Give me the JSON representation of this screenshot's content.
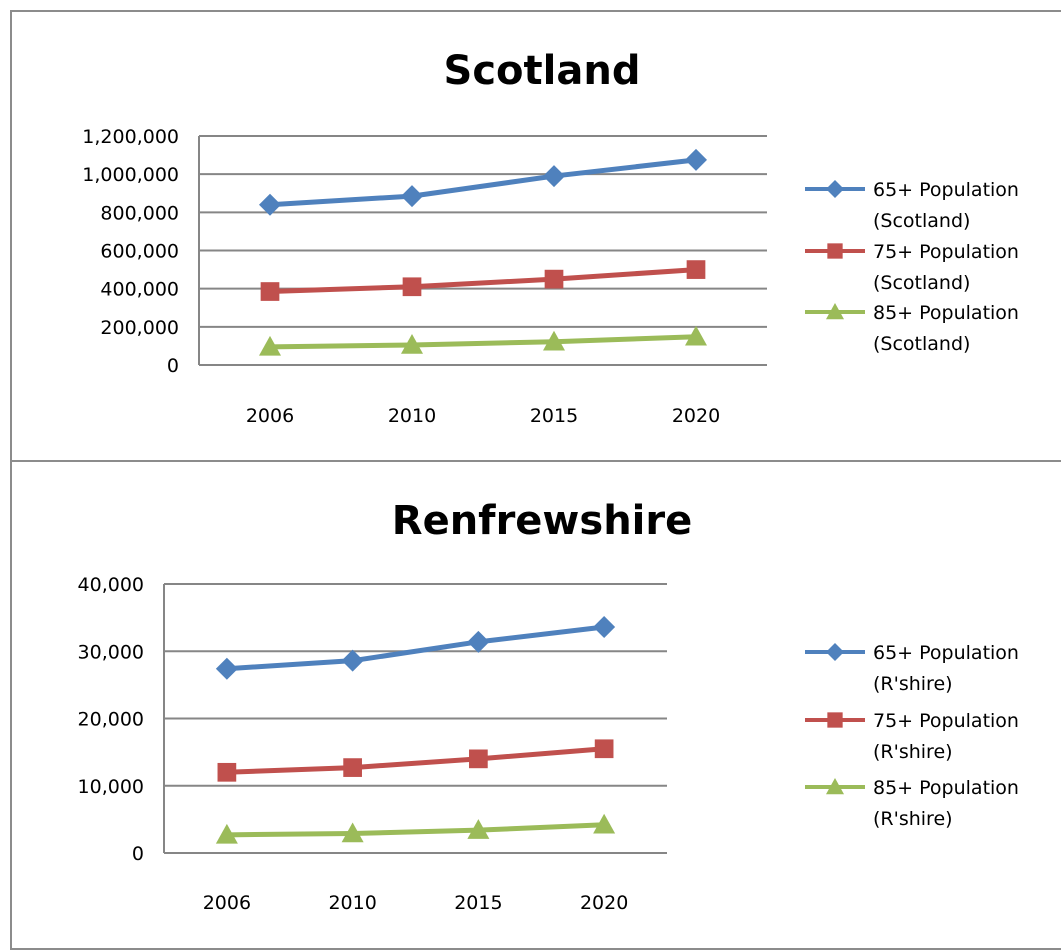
{
  "chart_data": [
    {
      "type": "line",
      "title": "Scotland",
      "xlabel": "",
      "ylabel": "",
      "categories": [
        "2006",
        "2010",
        "2015",
        "2020"
      ],
      "ylim": [
        0,
        1200000
      ],
      "yticks": [
        "0",
        "200,000",
        "400,000",
        "600,000",
        "800,000",
        "1,000,000",
        "1,200,000"
      ],
      "grid": true,
      "legend_position": "right",
      "series": [
        {
          "name": "65+ Population (Scotland)",
          "name_lines": [
            "65+ Population",
            "(Scotland)"
          ],
          "color": "#4f81bd",
          "marker": "diamond",
          "values": [
            840000,
            885000,
            990000,
            1075000
          ]
        },
        {
          "name": "75+ Population (Scotland)",
          "name_lines": [
            "75+ Population",
            "(Scotland)"
          ],
          "color": "#c0504d",
          "marker": "square",
          "values": [
            385000,
            410000,
            450000,
            500000
          ]
        },
        {
          "name": "85+ Population (Scotland)",
          "name_lines": [
            "85+ Population",
            "(Scotland)"
          ],
          "color": "#9bbb59",
          "marker": "triangle",
          "values": [
            95000,
            105000,
            122000,
            148000
          ]
        }
      ]
    },
    {
      "type": "line",
      "title": "Renfrewshire",
      "xlabel": "",
      "ylabel": "",
      "categories": [
        "2006",
        "2010",
        "2015",
        "2020"
      ],
      "ylim": [
        0,
        40000
      ],
      "yticks": [
        "0",
        "10,000",
        "20,000",
        "30,000",
        "40,000"
      ],
      "grid": true,
      "legend_position": "right",
      "series": [
        {
          "name": "65+ Population (R'shire)",
          "name_lines": [
            "65+ Population",
            "(R'shire)"
          ],
          "color": "#4f81bd",
          "marker": "diamond",
          "values": [
            27400,
            28600,
            31400,
            33600
          ]
        },
        {
          "name": "75+ Population (R'shire)",
          "name_lines": [
            "75+ Population",
            "(R'shire)"
          ],
          "color": "#c0504d",
          "marker": "square",
          "values": [
            12000,
            12700,
            14000,
            15500
          ]
        },
        {
          "name": "85+ Population (R'shire)",
          "name_lines": [
            "85+ Population",
            "(R'shire)"
          ],
          "color": "#9bbb59",
          "marker": "triangle",
          "values": [
            2700,
            2900,
            3400,
            4200
          ]
        }
      ]
    }
  ]
}
